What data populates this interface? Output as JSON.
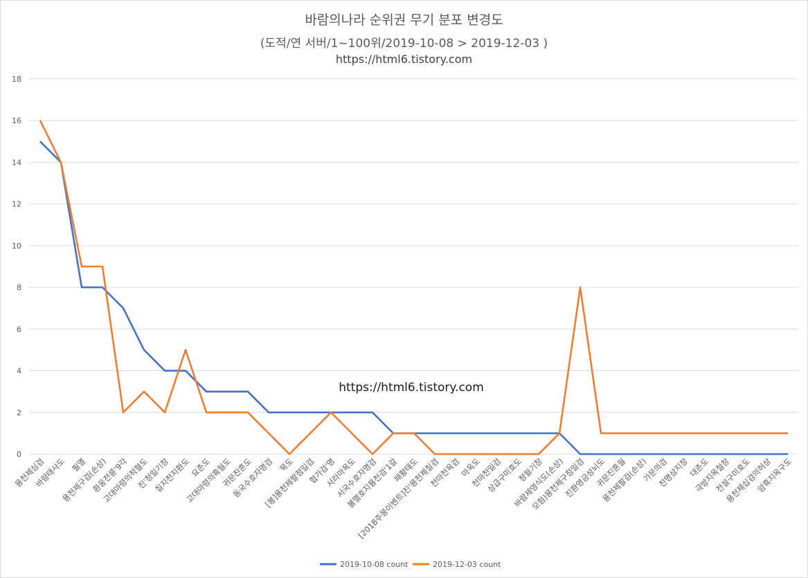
{
  "titles": {
    "line1": "바람의나라 순위권 무기 분포 변경도",
    "line2": "(도적/연 서버/1~100위/2019-10-08 > 2019-12-03 )",
    "line3": "https://html6.tistory.com"
  },
  "watermark": "https://html6.tistory.com",
  "colors": {
    "series_2019_10_08": "#4472c4",
    "series_2019_12_03": "#ed7d31",
    "grid": "#d9d9d9"
  },
  "chart_data": {
    "type": "line",
    "ylim": [
      0,
      18
    ],
    "yticks": [
      0,
      2,
      4,
      6,
      8,
      10,
      12,
      14,
      16,
      18
    ],
    "grid": true,
    "legend_position": "bottom",
    "categories": [
      "용천제심검",
      "바람태사도",
      "필멸",
      "용천제구검(손상)",
      "환웅전륜'9각",
      "고대마령의적혈도",
      "진'청일기창",
      "칠지천지환도",
      "요존도",
      "고대마령의흑월도",
      "귀문진혼도",
      "동국수호자명검",
      "묵도",
      "[봉]용천제팔점일검",
      "협가검'명",
      "서라마옥도",
      "서국수호자명검",
      "불멸호지용천검'1갈",
      "패황태도",
      "[2018주몽이벤트]진'용천제칠검",
      "천마천옥검",
      "마옥도",
      "천마천일검",
      "상급구미호도",
      "청월기창",
      "바람제영식도(손상)",
      "모험)용천제구점일검",
      "진환영금성뇌도",
      "귀문진혼월",
      "용천제팔검(손상)",
      "가문의검",
      "진명삼지창",
      "대존도",
      "극방지옥철창",
      "전설구미호도",
      "용천제십검의허상",
      "암흑지옥구도"
    ],
    "series": [
      {
        "name": "2019-10-08 count",
        "values": [
          15,
          14,
          8,
          8,
          7,
          5,
          4,
          4,
          3,
          3,
          3,
          2,
          2,
          2,
          2,
          2,
          2,
          1,
          1,
          1,
          1,
          1,
          1,
          1,
          1,
          1,
          0,
          0,
          0,
          0,
          0,
          0,
          0,
          0,
          0,
          0,
          0
        ]
      },
      {
        "name": "2019-12-03 count",
        "values": [
          16,
          14,
          9,
          9,
          2,
          3,
          2,
          5,
          2,
          2,
          2,
          1,
          0,
          1,
          2,
          1,
          0,
          1,
          1,
          0,
          0,
          0,
          0,
          0,
          0,
          1,
          8,
          1,
          1,
          1,
          1,
          1,
          1,
          1,
          1,
          1,
          1
        ]
      }
    ]
  }
}
